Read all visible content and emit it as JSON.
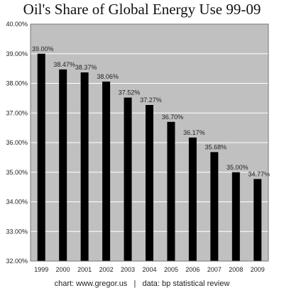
{
  "chart_data": {
    "type": "bar",
    "title": "Oil's Share of Global Energy Use 99-09",
    "categories": [
      "1999",
      "2000",
      "2001",
      "2002",
      "2003",
      "2004",
      "2005",
      "2006",
      "2007",
      "2008",
      "2009"
    ],
    "values": [
      39.0,
      38.47,
      38.37,
      38.06,
      37.52,
      37.27,
      36.7,
      36.17,
      35.68,
      35.0,
      34.77
    ],
    "data_labels": [
      "39.00%",
      "38.47%",
      "38.37%",
      "38.06%",
      "37.52%",
      "37.27%",
      "36.70%",
      "36.17%",
      "35.68%",
      "35.00%",
      "34.77%"
    ],
    "ylim": [
      32,
      40
    ],
    "yticks": [
      32,
      33,
      34,
      35,
      36,
      37,
      38,
      39,
      40
    ],
    "ytick_labels": [
      "32.00%",
      "33.00%",
      "34.00%",
      "35.00%",
      "36.00%",
      "37.00%",
      "38.00%",
      "39.00%",
      "40.00%"
    ],
    "xlabel": "",
    "ylabel": "",
    "grid": true,
    "colors": {
      "bar": "#000000",
      "plot_bg": "#c0c0c0",
      "grid": "#ffffff"
    }
  },
  "footer": {
    "source_credit": "chart: www.gregor.us   |   data: bp statistical review"
  }
}
